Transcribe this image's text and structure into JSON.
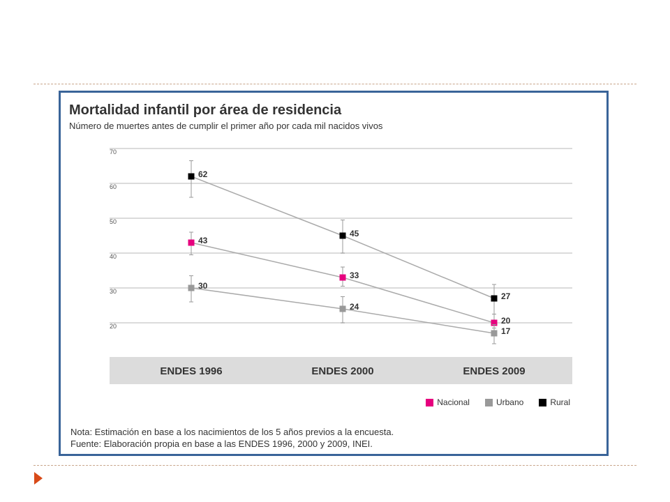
{
  "chart_data": {
    "type": "line",
    "title": "Mortalidad infantil por área de residencia",
    "subtitle": "Número de muertes antes de cumplir el primer año por cada mil nacidos vivos",
    "categories": [
      "ENDES 1996",
      "ENDES 2000",
      "ENDES 2009"
    ],
    "yticks": [
      "20",
      "30",
      "40",
      "50",
      "60",
      "70"
    ],
    "ylim": [
      20,
      70
    ],
    "grid": true,
    "legend_position": "bottom-right",
    "series": [
      {
        "name": "Nacional",
        "color": "#e6007e",
        "values": [
          43,
          33,
          20
        ],
        "labels": [
          "43",
          "33",
          "20"
        ],
        "error_low": [
          39.5,
          30.5,
          18.5
        ],
        "error_high": [
          46,
          36,
          22.5
        ]
      },
      {
        "name": "Urbano",
        "color": "#999999",
        "values": [
          30,
          24,
          17
        ],
        "labels": [
          "30",
          "24",
          "17"
        ],
        "error_low": [
          26,
          20,
          14
        ],
        "error_high": [
          33.5,
          27.5,
          19.5
        ]
      },
      {
        "name": "Rural",
        "color": "#000000",
        "values": [
          62,
          45,
          27
        ],
        "labels": [
          "62",
          "45",
          "27"
        ],
        "error_low": [
          56,
          40,
          22.5
        ],
        "error_high": [
          66.5,
          49.5,
          31
        ]
      }
    ]
  },
  "notes": {
    "nota": "Nota: Estimación en base a los nacimientos de los 5 años previos a la encuesta.",
    "fuente": "Fuente: Elaboración propia en base a las ENDES 1996, 2000 y 2009, INEI."
  },
  "icons": {
    "bullet": "triangle-right-icon"
  },
  "colors": {
    "frame": "#3a6499",
    "bullet": "#d84a18",
    "rule": "#c8a58a",
    "category_band": "#dcdcdc"
  }
}
